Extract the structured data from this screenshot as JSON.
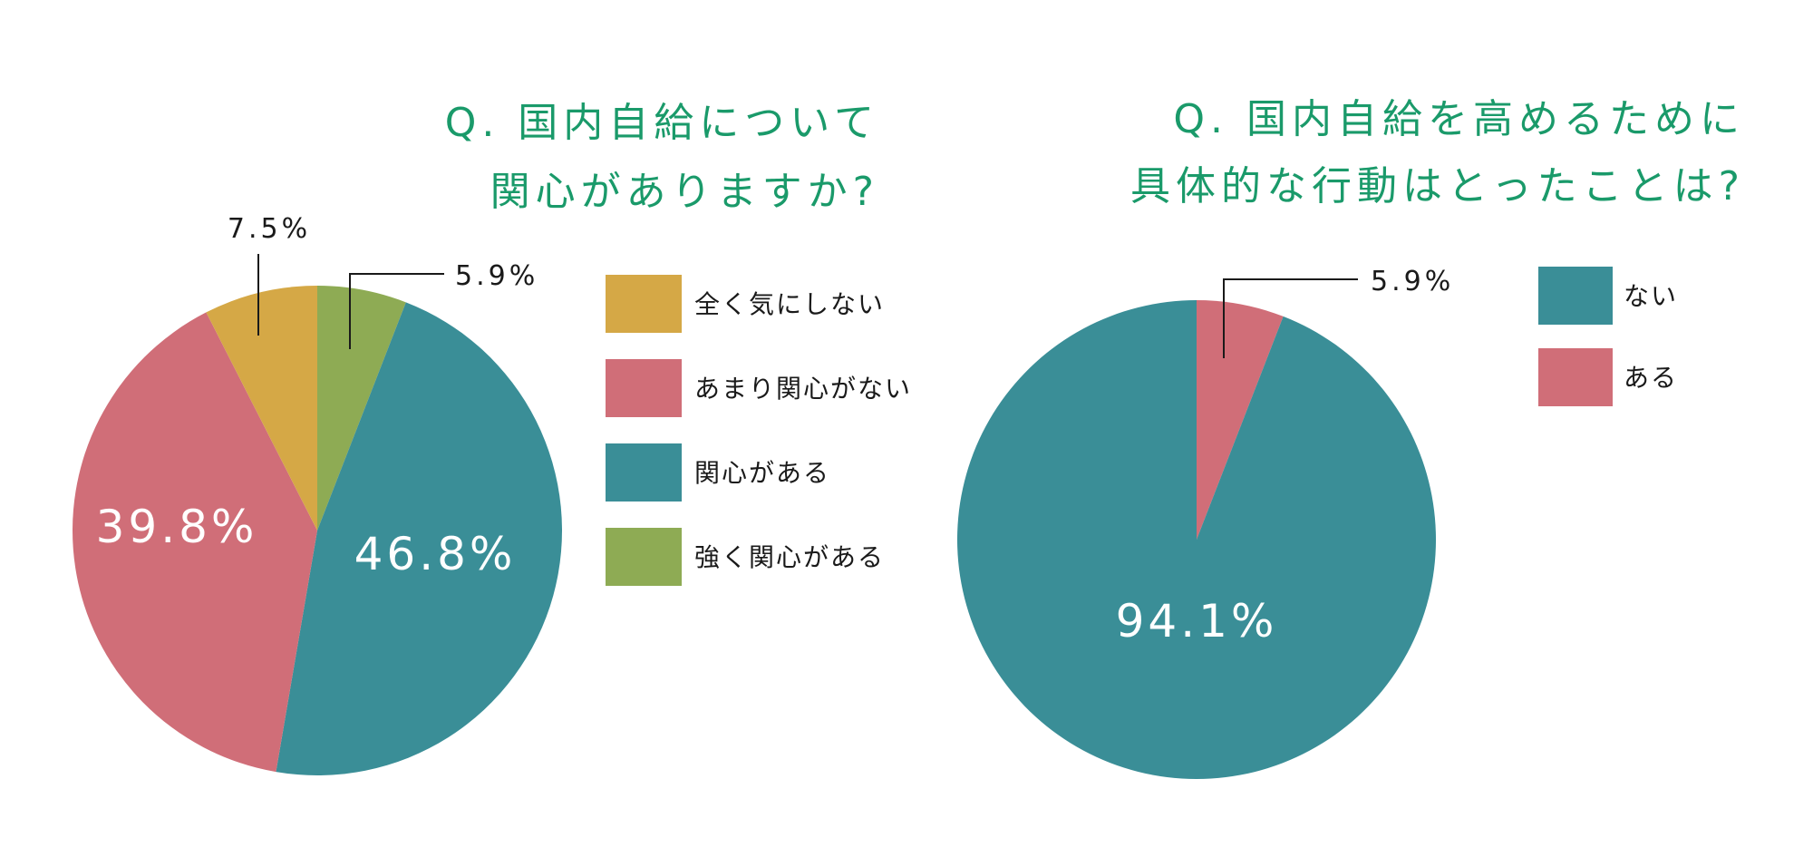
{
  "colors": {
    "title": "#1a9a6a",
    "leader": "#1a1a1a"
  },
  "chart_data": [
    {
      "type": "pie",
      "title_lines": [
        "Q. 国内自給について",
        "関心がありますか?"
      ],
      "slices": [
        {
          "label": "強く関心がある",
          "value": 5.9,
          "value_label": "5.9%",
          "color": "#8eab54"
        },
        {
          "label": "関心がある",
          "value": 46.8,
          "value_label": "46.8%",
          "color": "#3a8e97"
        },
        {
          "label": "あまり関心がない",
          "value": 39.8,
          "value_label": "39.8%",
          "color": "#d06e78"
        },
        {
          "label": "全く気にしない",
          "value": 7.5,
          "value_label": "7.5%",
          "color": "#d5a846"
        }
      ],
      "legend_order": [
        "全く気にしない",
        "あまり関心がない",
        "関心がある",
        "強く関心がある"
      ]
    },
    {
      "type": "pie",
      "title_lines": [
        "Q. 国内自給を高めるために",
        "具体的な行動はとったことは?"
      ],
      "slices": [
        {
          "label": "ある",
          "value": 5.9,
          "value_label": "5.9%",
          "color": "#d06e78"
        },
        {
          "label": "ない",
          "value": 94.1,
          "value_label": "94.1%",
          "color": "#3a8e97"
        }
      ],
      "legend_order": [
        "ない",
        "ある"
      ]
    }
  ]
}
